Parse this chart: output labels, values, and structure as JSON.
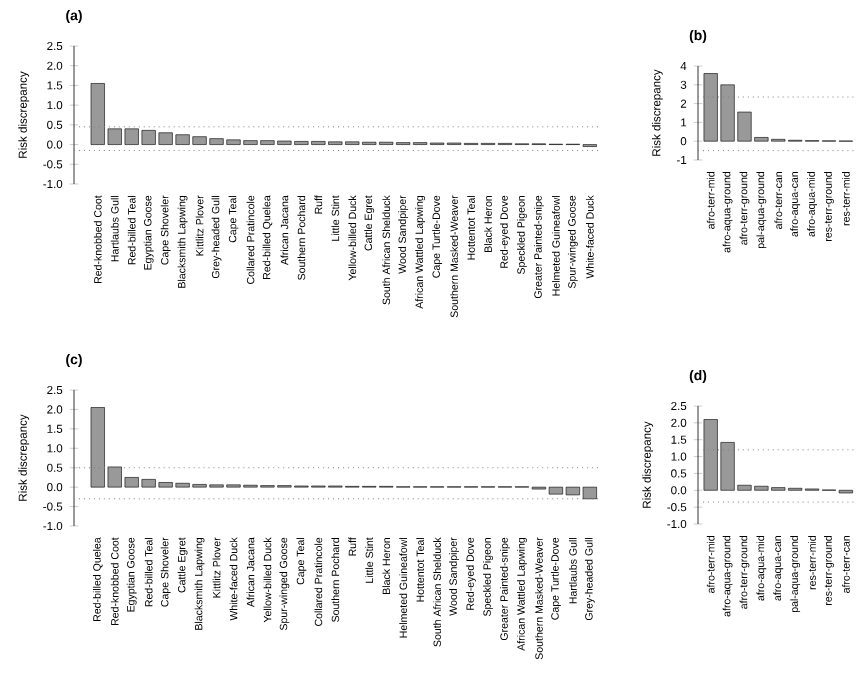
{
  "chart_data": [
    {
      "type": "bar",
      "title": "(a)",
      "ylabel": "Risk discrepancy",
      "color": "#999999",
      "grid": false,
      "categories": [
        "Red-knobbed Coot",
        "Hartlaubs Gull",
        "Red-billed Teal",
        "Egyptian Goose",
        "Cape Shoveler",
        "Blacksmith Lapwing",
        "Kittlitz Plover",
        "Grey-headed Gull",
        "Cape Teal",
        "Collared Pratincole",
        "Red-billed Quelea",
        "African Jacana",
        "Southern Pochard",
        "Ruff",
        "Little Stint",
        "Yellow-billed Duck",
        "Cattle Egret",
        "South African Shelduck",
        "Wood Sandpiper",
        "African Wattled Lapwing",
        "Cape Turtle-Dove",
        "Southern Masked-Weaver",
        "Hottentot Teal",
        "Black Heron",
        "Red-eyed Dove",
        "Speckled Pigeon",
        "Greater Painted-snipe",
        "Helmeted Guineafowl",
        "Spur-winged Goose",
        "White-faced Duck"
      ],
      "values": [
        1.55,
        0.4,
        0.4,
        0.36,
        0.3,
        0.25,
        0.2,
        0.15,
        0.12,
        0.1,
        0.1,
        0.09,
        0.08,
        0.08,
        0.07,
        0.07,
        0.06,
        0.06,
        0.05,
        0.05,
        0.04,
        0.04,
        0.03,
        0.03,
        0.03,
        0.02,
        0.02,
        0.01,
        0.01,
        -0.05
      ],
      "ylim": [
        -1,
        2.5
      ],
      "yticks": [
        {
          "value": -1,
          "label": "-1.0"
        },
        {
          "value": -0.5,
          "label": "-0.5"
        },
        {
          "value": 0,
          "label": "0.0"
        },
        {
          "value": 0.5,
          "label": "0.5"
        },
        {
          "value": 1,
          "label": "1.0"
        },
        {
          "value": 1.5,
          "label": "1.5"
        },
        {
          "value": 2,
          "label": "2.0"
        },
        {
          "value": 2.5,
          "label": "2.5"
        }
      ],
      "ref_lines": [
        {
          "axis": "y",
          "value": 0.45,
          "color": "#808080",
          "line_style": "dotted"
        },
        {
          "axis": "y",
          "value": -0.15,
          "color": "#808080",
          "line_style": "dotted"
        }
      ]
    },
    {
      "type": "bar",
      "title": "(b)",
      "ylabel": "Risk discrepancy",
      "color": "#999999",
      "grid": false,
      "categories": [
        "afro-terr-mid",
        "afro-aqua-ground",
        "afro-terr-ground",
        "pal-aqua-ground",
        "afro-terr-can",
        "afro-aqua-can",
        "afro-aqua-mid",
        "res-terr-ground",
        "res-terr-mid"
      ],
      "values": [
        3.6,
        3.0,
        1.55,
        0.2,
        0.1,
        0.05,
        0.03,
        0.02,
        0.01
      ],
      "ylim": [
        -1,
        4
      ],
      "yticks": [
        -1,
        0,
        1,
        2,
        3,
        4
      ],
      "ref_lines": [
        {
          "axis": "y",
          "value": 2.35,
          "color": "#808080",
          "line_style": "dotted"
        },
        {
          "axis": "y",
          "value": -0.5,
          "color": "#808080",
          "line_style": "dotted"
        }
      ]
    },
    {
      "type": "bar",
      "title": "(c)",
      "ylabel": "Risk discrepancy",
      "color": "#999999",
      "grid": false,
      "categories": [
        "Red-billed Quelea",
        "Red-knobbed Coot",
        "Egyptian Goose",
        "Red-billed Teal",
        "Cape Shoveler",
        "Cattle Egret",
        "Blacksmith Lapwing",
        "Kittlitz Plover",
        "White-faced Duck",
        "African Jacana",
        "Yellow-billed Duck",
        "Spur-winged Goose",
        "Cape Teal",
        "Collared Pratincole",
        "Southern Pochard",
        "Ruff",
        "Little Stint",
        "Black Heron",
        "Helmeted Guineafowl",
        "Hottentot Teal",
        "South African Shelduck",
        "Wood Sandpiper",
        "Red-eyed Dove",
        "Speckled Pigeon",
        "Greater Painted-snipe",
        "African Wattled Lapwing",
        "Southern Masked-Weaver",
        "Cape Turtle-Dove",
        "Hartlaubs Gull",
        "Grey-headed Gull"
      ],
      "values": [
        2.05,
        0.52,
        0.25,
        0.2,
        0.12,
        0.1,
        0.07,
        0.06,
        0.06,
        0.05,
        0.04,
        0.04,
        0.03,
        0.03,
        0.03,
        0.02,
        0.02,
        0.02,
        0.01,
        0.01,
        0.01,
        0.01,
        0.01,
        0.01,
        0.01,
        0.01,
        -0.05,
        -0.18,
        -0.2,
        -0.3
      ],
      "ylim": [
        -1,
        2.5
      ],
      "yticks": [
        {
          "value": -1,
          "label": "-1.0"
        },
        {
          "value": -0.5,
          "label": "-0.5"
        },
        {
          "value": 0,
          "label": "0.0"
        },
        {
          "value": 0.5,
          "label": "0.5"
        },
        {
          "value": 1,
          "label": "1.0"
        },
        {
          "value": 1.5,
          "label": "1.5"
        },
        {
          "value": 2,
          "label": "2.0"
        },
        {
          "value": 2.5,
          "label": "2.5"
        }
      ],
      "ref_lines": [
        {
          "axis": "y",
          "value": 0.5,
          "color": "#808080",
          "line_style": "dotted"
        },
        {
          "axis": "y",
          "value": -0.3,
          "color": "#808080",
          "line_style": "dotted"
        }
      ]
    },
    {
      "type": "bar",
      "title": "(d)",
      "ylabel": "Risk discrepancy",
      "color": "#999999",
      "grid": false,
      "categories": [
        "afro-terr-mid",
        "afro-aqua-ground",
        "afro-terr-ground",
        "afro-aqua-mid",
        "afro-aqua-can",
        "pal-aqua-ground",
        "res-terr-mid",
        "res-terr-ground",
        "afro-terr-can"
      ],
      "values": [
        2.1,
        1.42,
        0.15,
        0.12,
        0.08,
        0.06,
        0.04,
        0.01,
        -0.08
      ],
      "ylim": [
        -1,
        2.5
      ],
      "yticks": [
        {
          "value": -1,
          "label": "-1.0"
        },
        {
          "value": -0.5,
          "label": "-0.5"
        },
        {
          "value": 0,
          "label": "0.0"
        },
        {
          "value": 0.5,
          "label": "0.5"
        },
        {
          "value": 1,
          "label": "1.0"
        },
        {
          "value": 1.5,
          "label": "1.5"
        },
        {
          "value": 2,
          "label": "2.0"
        },
        {
          "value": 2.5,
          "label": "2.5"
        }
      ],
      "ref_lines": [
        {
          "axis": "y",
          "value": 1.2,
          "color": "#808080",
          "line_style": "dotted"
        },
        {
          "axis": "y",
          "value": -0.35,
          "color": "#808080",
          "line_style": "dotted"
        }
      ]
    }
  ]
}
